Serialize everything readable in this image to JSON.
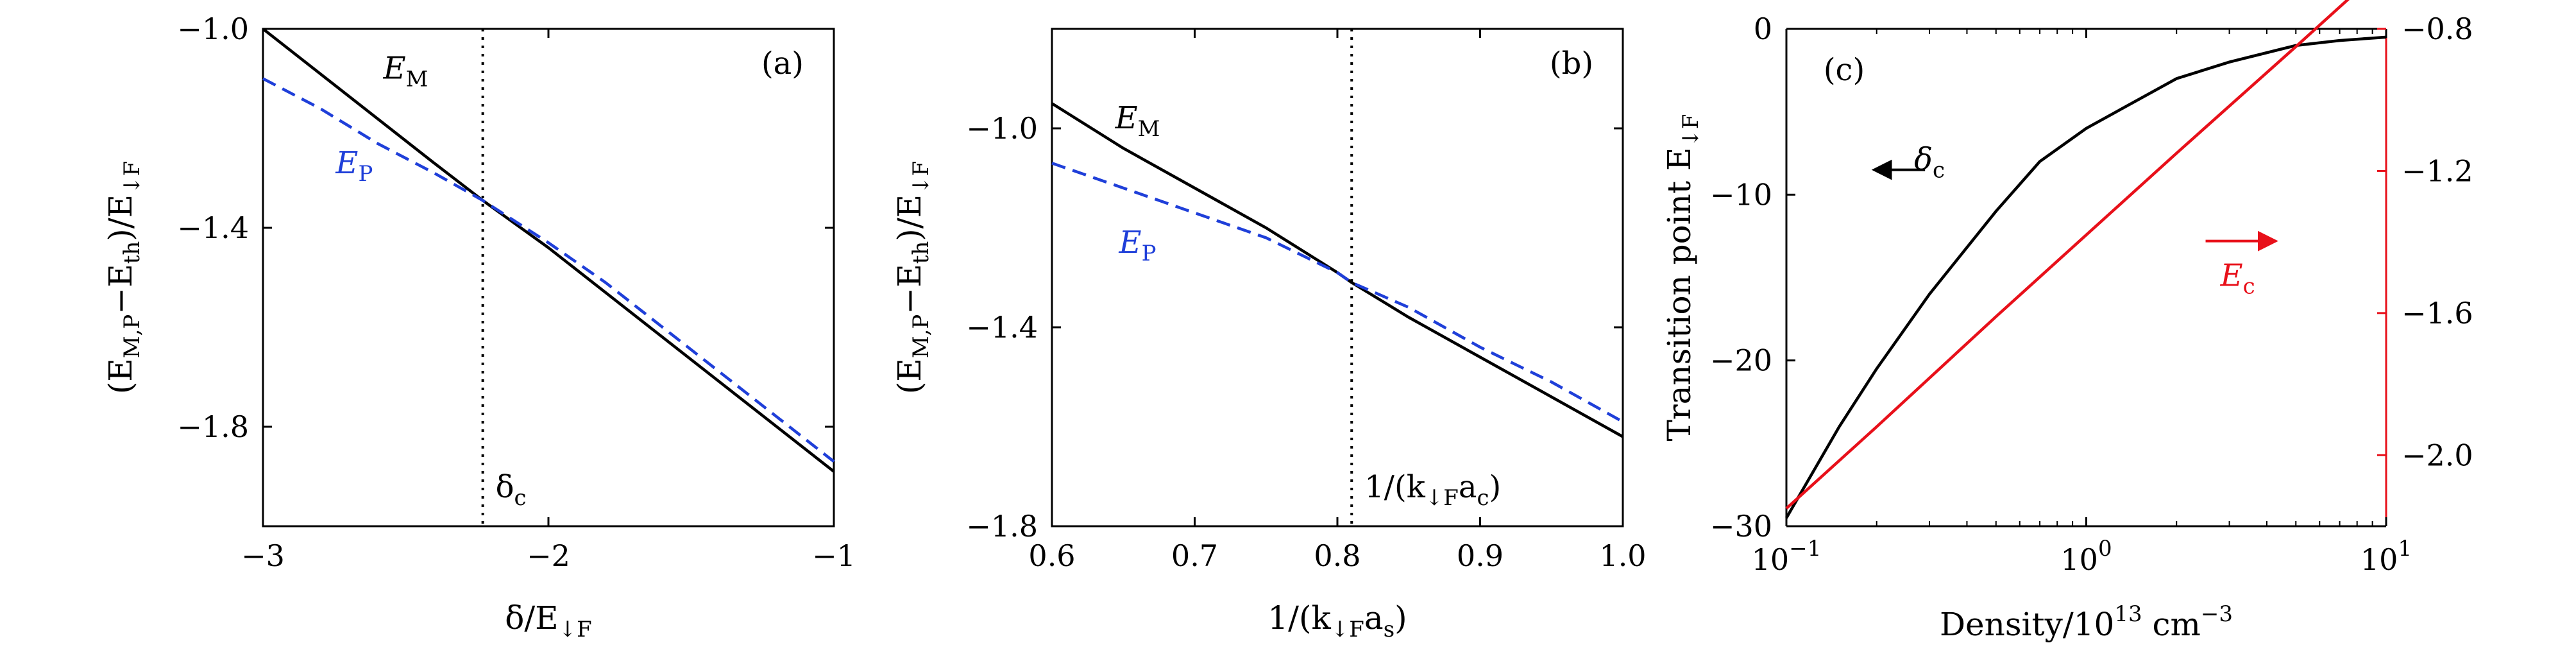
{
  "chart_data": [
    {
      "type": "line",
      "panel_label": "(a)",
      "xlabel_main": "δ/E",
      "xlabel_sub": "↓F",
      "ylabel_parts": [
        {
          "t": "(E"
        },
        {
          "t": "M,P",
          "sub": true
        },
        {
          "t": "−E"
        },
        {
          "t": "th",
          "sub": true
        },
        {
          "t": ")/E"
        },
        {
          "t": "↓F",
          "sub": true
        }
      ],
      "xlim": [
        -3,
        -1
      ],
      "ylim": [
        -2.0,
        -1.0
      ],
      "x_ticks": [
        -3,
        -2,
        -1
      ],
      "x_tick_labels": [
        "−3",
        "−2",
        "−1"
      ],
      "y_ticks": [
        -1.0,
        -1.4,
        -1.8
      ],
      "y_tick_labels": [
        "−1.0",
        "−1.4",
        "−1.8"
      ],
      "vline": {
        "x": -2.23,
        "label": "δ",
        "label_sub": "c"
      },
      "series": [
        {
          "name": "E",
          "name_sub": "M",
          "color": "#000000",
          "style": "solid",
          "x": [
            -3.0,
            -2.8,
            -2.6,
            -2.4,
            -2.23,
            -2.0,
            -1.8,
            -1.6,
            -1.4,
            -1.2,
            -1.0
          ],
          "y": [
            -1.0,
            -1.09,
            -1.18,
            -1.27,
            -1.345,
            -1.44,
            -1.53,
            -1.62,
            -1.71,
            -1.8,
            -1.89
          ]
        },
        {
          "name": "E",
          "name_sub": "P",
          "color": "#1f3fd9",
          "style": "dashed",
          "x": [
            -3.0,
            -2.8,
            -2.6,
            -2.4,
            -2.23,
            -2.0,
            -1.8,
            -1.6,
            -1.4,
            -1.2,
            -1.0
          ],
          "y": [
            -1.1,
            -1.16,
            -1.23,
            -1.29,
            -1.345,
            -1.43,
            -1.51,
            -1.6,
            -1.69,
            -1.78,
            -1.87
          ]
        }
      ],
      "series_label_pos": [
        {
          "x": -2.5,
          "y": -1.1
        },
        {
          "x": -2.68,
          "y": -1.29
        }
      ]
    },
    {
      "type": "line",
      "panel_label": "(b)",
      "xlabel_main": "1/(k",
      "xlabel_sub": "↓F",
      "xlabel_tail": "a",
      "xlabel_tail_sub": "s",
      "xlabel_end": ")",
      "ylabel_parts": [
        {
          "t": "(E"
        },
        {
          "t": "M,P",
          "sub": true
        },
        {
          "t": "−E"
        },
        {
          "t": "th",
          "sub": true
        },
        {
          "t": ")/E"
        },
        {
          "t": "↓F",
          "sub": true
        }
      ],
      "xlim": [
        0.6,
        1.0
      ],
      "ylim": [
        -1.8,
        -0.8
      ],
      "x_ticks": [
        0.6,
        0.7,
        0.8,
        0.9,
        1.0
      ],
      "x_tick_labels": [
        "0.6",
        "0.7",
        "0.8",
        "0.9",
        "1.0"
      ],
      "y_ticks": [
        -1.0,
        -1.4,
        -1.8
      ],
      "y_tick_labels": [
        "−1.0",
        "−1.4",
        "−1.8"
      ],
      "vline": {
        "x": 0.81,
        "label": "1/(k",
        "label_sub": "↓F",
        "label_tail": "a",
        "label_tail_sub": "c",
        "label_end": ")"
      },
      "series": [
        {
          "name": "E",
          "name_sub": "M",
          "color": "#000000",
          "style": "solid",
          "x": [
            0.6,
            0.65,
            0.7,
            0.75,
            0.8,
            0.81,
            0.85,
            0.9,
            0.95,
            1.0
          ],
          "y": [
            -0.95,
            -1.04,
            -1.12,
            -1.2,
            -1.29,
            -1.31,
            -1.38,
            -1.46,
            -1.54,
            -1.62
          ]
        },
        {
          "name": "E",
          "name_sub": "P",
          "color": "#1f3fd9",
          "style": "dashed",
          "x": [
            0.6,
            0.65,
            0.7,
            0.75,
            0.8,
            0.81,
            0.85,
            0.9,
            0.95,
            1.0
          ],
          "y": [
            -1.07,
            -1.12,
            -1.17,
            -1.22,
            -1.29,
            -1.31,
            -1.36,
            -1.44,
            -1.51,
            -1.59
          ]
        }
      ],
      "series_label_pos": [
        {
          "x": 0.66,
          "y": -1.0
        },
        {
          "x": 0.66,
          "y": -1.25
        }
      ]
    },
    {
      "type": "line",
      "panel_label": "(c)",
      "xscale": "log",
      "xlabel_main": "Density/10",
      "xlabel_sup": "13",
      "xlabel_tail": " cm",
      "xlabel_tail_sup": "−3",
      "ylabel_left_main": "Transition point E",
      "ylabel_left_sub": "↓F",
      "xlim": [
        0.1,
        10
      ],
      "x_ticks": [
        0.1,
        1,
        10
      ],
      "x_tick_labels": [
        {
          "b": "10",
          "e": "−1"
        },
        {
          "b": "10",
          "e": "0"
        },
        {
          "b": "10",
          "e": "1"
        }
      ],
      "ylim_left": [
        -30,
        0
      ],
      "y_ticks_left": [
        0,
        -10,
        -20,
        -30
      ],
      "y_tick_labels_left": [
        "0",
        "−10",
        "−20",
        "−30"
      ],
      "ylim_right": [
        -2.2,
        -0.8
      ],
      "y_ticks_right": [
        -0.8,
        -1.2,
        -1.6,
        -2.0
      ],
      "y_tick_labels_right": [
        "−0.8",
        "−1.2",
        "−1.6",
        "−2.0"
      ],
      "right_axis_color": "#e8101a",
      "series": [
        {
          "name": "δ",
          "name_sub": "c",
          "axis": "left",
          "color": "#000000",
          "x": [
            0.1,
            0.15,
            0.2,
            0.3,
            0.5,
            0.7,
            1,
            2,
            3,
            5,
            7,
            10
          ],
          "y": [
            -29.5,
            -24,
            -20.5,
            -16,
            -11,
            -8,
            -6,
            -3,
            -2,
            -1,
            -0.7,
            -0.5
          ]
        },
        {
          "name": "E",
          "name_sub": "c",
          "axis": "right",
          "color": "#e8101a",
          "x": [
            0.1,
            0.2,
            0.5,
            1,
            2,
            5,
            10
          ],
          "y": [
            -2.15,
            -1.92,
            -1.61,
            -1.38,
            -1.15,
            -0.85,
            -0.62
          ]
        }
      ],
      "series_label_pos": [
        {
          "x": 0.3,
          "y_left": -8.5
        },
        {
          "x": 3.2,
          "y_left": -15.5
        }
      ],
      "arrows": [
        {
          "x1": 0.29,
          "x2": 0.2,
          "y_left": -8.5,
          "color": "#000000"
        },
        {
          "x1": 2.5,
          "x2": 4.2,
          "y_left": -12.8,
          "color": "#e8101a"
        }
      ]
    }
  ]
}
